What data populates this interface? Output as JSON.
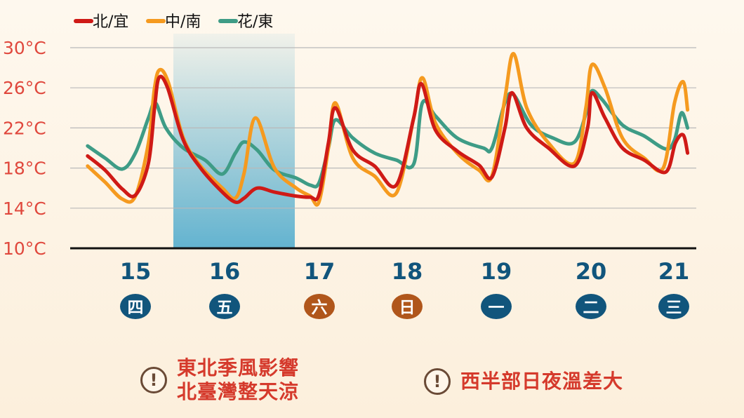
{
  "legend": [
    {
      "name": "北/宜",
      "color": "#cf1a16"
    },
    {
      "name": "中/南",
      "color": "#f59a1f"
    },
    {
      "name": "花/東",
      "color": "#3e9c86"
    }
  ],
  "y_axis": {
    "ticks": [
      "30°C",
      "26°C",
      "22°C",
      "18°C",
      "14°C",
      "10°C"
    ],
    "values": [
      30,
      26,
      22,
      18,
      14,
      10
    ],
    "min": 10,
    "max": 30,
    "color": "#e0483d"
  },
  "days": [
    {
      "date": "15",
      "weekday": "四",
      "color": "#11557c"
    },
    {
      "date": "16",
      "weekday": "五",
      "color": "#11557c"
    },
    {
      "date": "17",
      "weekday": "六",
      "color": "#b0561b"
    },
    {
      "date": "18",
      "weekday": "日",
      "color": "#b0561b"
    },
    {
      "date": "19",
      "weekday": "一",
      "color": "#11557c"
    },
    {
      "date": "20",
      "weekday": "二",
      "color": "#11557c"
    },
    {
      "date": "21",
      "weekday": "三",
      "color": "#11557c"
    }
  ],
  "highlight": {
    "from": 15.5,
    "to": 16.5,
    "color": "#5bb0cf"
  },
  "chart_data": {
    "type": "line",
    "x_unit": "day",
    "ylim": [
      10,
      30
    ],
    "grid": true,
    "legend_position": "top-left",
    "series": [
      {
        "name": "北/宜",
        "color": "#cf1a16",
        "x": [
          14.2,
          14.4,
          14.6,
          14.75,
          14.9,
          14.97,
          15.02,
          15.12,
          15.3,
          15.5,
          15.75,
          15.9,
          16.0,
          16.15,
          16.35,
          16.6,
          16.76,
          16.86,
          16.97,
          17.05,
          17.25,
          17.5,
          17.75,
          17.95,
          18.04,
          18.2,
          18.45,
          18.7,
          18.85,
          19.0,
          19.08,
          19.25,
          19.5,
          19.8,
          19.95,
          20.0,
          20.15,
          20.35,
          20.6,
          20.85,
          20.96,
          21.05,
          21.1
        ],
        "y": [
          19.2,
          17.8,
          15.9,
          15.3,
          18.5,
          24.0,
          27.0,
          26.0,
          20.8,
          18.0,
          15.6,
          14.6,
          15.0,
          16.0,
          15.6,
          15.2,
          15.1,
          15.3,
          20.5,
          24.0,
          19.8,
          18.2,
          16.3,
          23.0,
          26.4,
          21.8,
          19.7,
          18.3,
          17.1,
          22.0,
          25.5,
          22.0,
          20.0,
          18.2,
          22.0,
          25.5,
          23.0,
          20.0,
          18.8,
          17.6,
          20.5,
          21.3,
          19.5
        ]
      },
      {
        "name": "中/南",
        "color": "#f59a1f",
        "x": [
          14.2,
          14.4,
          14.6,
          14.75,
          14.9,
          14.97,
          15.03,
          15.13,
          15.3,
          15.5,
          15.75,
          15.9,
          16.0,
          16.13,
          16.35,
          16.6,
          16.76,
          16.86,
          16.97,
          17.05,
          17.25,
          17.5,
          17.75,
          17.95,
          18.05,
          18.2,
          18.45,
          18.7,
          18.85,
          19.0,
          19.1,
          19.25,
          19.5,
          19.8,
          19.93,
          20.0,
          20.15,
          20.35,
          20.6,
          20.82,
          20.95,
          21.05,
          21.1
        ],
        "y": [
          18.2,
          16.6,
          14.9,
          15.2,
          20.5,
          26.0,
          27.8,
          26.5,
          21.0,
          18.2,
          16.0,
          15.0,
          17.5,
          23.0,
          18.0,
          16.0,
          15.2,
          14.6,
          20.0,
          24.5,
          19.0,
          17.2,
          15.5,
          23.0,
          27.0,
          22.5,
          19.5,
          17.8,
          17.2,
          25.0,
          29.4,
          24.0,
          20.5,
          18.5,
          24.0,
          28.3,
          26.0,
          21.0,
          19.0,
          18.0,
          24.5,
          26.6,
          23.8
        ]
      },
      {
        "name": "花/東",
        "color": "#3e9c86",
        "x": [
          14.2,
          14.4,
          14.6,
          14.75,
          14.9,
          14.98,
          15.1,
          15.3,
          15.55,
          15.75,
          15.9,
          16.0,
          16.15,
          16.35,
          16.6,
          16.76,
          16.86,
          16.97,
          17.05,
          17.25,
          17.5,
          17.75,
          17.95,
          18.05,
          18.2,
          18.45,
          18.75,
          18.85,
          19.0,
          19.1,
          19.3,
          19.55,
          19.8,
          19.95,
          20.0,
          20.12,
          20.35,
          20.6,
          20.85,
          20.95,
          21.03,
          21.1
        ],
        "y": [
          20.2,
          19.0,
          17.9,
          19.5,
          23.0,
          24.5,
          22.0,
          20.0,
          18.8,
          17.4,
          19.5,
          20.6,
          19.8,
          17.8,
          17.0,
          16.3,
          16.5,
          20.0,
          22.8,
          21.0,
          19.5,
          18.8,
          18.4,
          24.5,
          23.2,
          21.0,
          20.0,
          20.0,
          24.5,
          25.3,
          22.3,
          21.0,
          20.6,
          24.0,
          25.7,
          24.8,
          22.3,
          21.2,
          19.9,
          20.8,
          23.5,
          22.0
        ]
      }
    ]
  },
  "notes": {
    "note1": {
      "icon": "!",
      "lines": [
        "東北季風影響",
        "北臺灣整天涼"
      ]
    },
    "note2": {
      "icon": "!",
      "text": "西半部日夜溫差大"
    }
  }
}
